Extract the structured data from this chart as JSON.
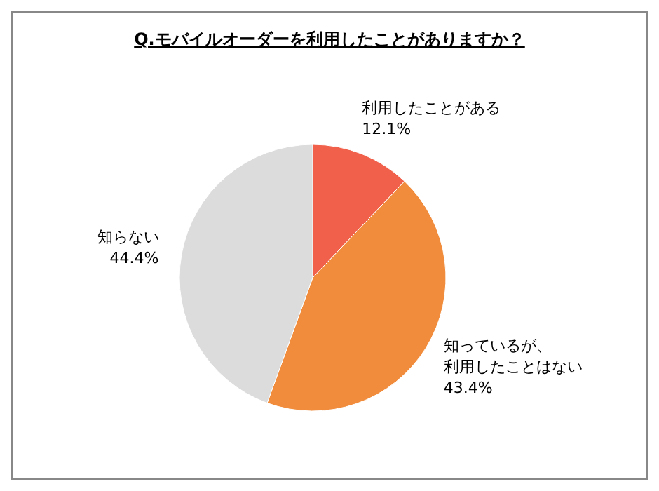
{
  "chart_data": {
    "type": "pie",
    "title": "Q.モバイルオーダーを利用したことがありますか？",
    "categories": [
      "利用したことがある",
      "知っているが、利用したことはない",
      "知らない"
    ],
    "values": [
      12.1,
      43.4,
      44.4
    ],
    "value_labels": [
      "12.1%",
      "43.4%",
      "44.4%"
    ],
    "colors": [
      "#f0604a",
      "#f08c3c",
      "#dcdcdc"
    ]
  }
}
